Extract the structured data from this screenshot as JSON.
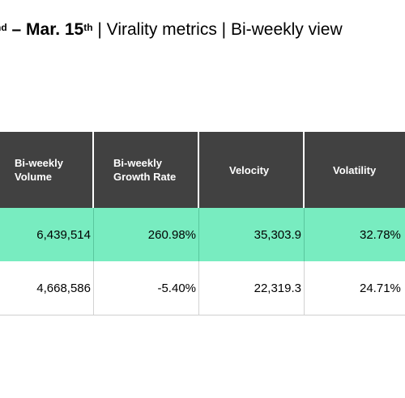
{
  "title": {
    "part1": "nd",
    "part2": " – Mar. 15",
    "part3": "th",
    "part4": " | Virality metrics | Bi-weekly view"
  },
  "table": {
    "headers": [
      {
        "line1": "Bi-weekly",
        "line2": "Volume"
      },
      {
        "line1": "Bi-weekly",
        "line2": "Growth Rate"
      },
      {
        "line1": "Velocity",
        "line2": ""
      },
      {
        "line1": "Volatility",
        "line2": ""
      }
    ],
    "rows": [
      [
        "6,439,514",
        "260.98%",
        "35,303.9",
        "32.78%"
      ],
      [
        "4,668,586",
        "-5.40%",
        "22,319.3",
        "24.71%"
      ]
    ],
    "colors": {
      "header_bg": "#414141",
      "highlight_row_bg": "#78ecc0",
      "normal_row_bg": "#ffffff"
    }
  }
}
